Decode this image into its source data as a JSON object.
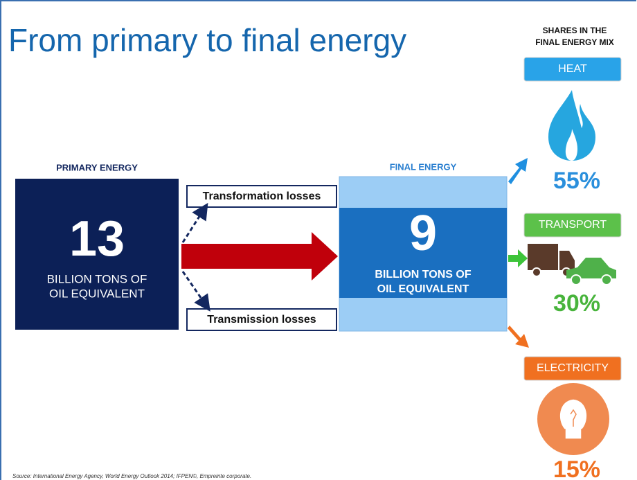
{
  "title": "From primary to final energy",
  "shares_heading": [
    "SHARES IN THE",
    "FINAL ENERGY MIX"
  ],
  "primary": {
    "heading": "PRIMARY ENERGY",
    "value": "13",
    "unit": [
      "BILLION TONS OF",
      "OIL EQUIVALENT"
    ]
  },
  "final": {
    "heading": "FINAL ENERGY",
    "value": "9",
    "unit": [
      "BILLION TONS OF",
      "OIL EQUIVALENT"
    ]
  },
  "losses": [
    "Transformation losses",
    "Transmission losses"
  ],
  "shares": [
    {
      "label": "HEAT",
      "value": "55%"
    },
    {
      "label": "TRANSPORT",
      "value": "30%"
    },
    {
      "label": "ELECTRICITY",
      "value": "15%"
    }
  ],
  "source": "Source: International Energy Agency, World Energy Outlook 2014; IFPEN©, Empreinte corporate."
}
